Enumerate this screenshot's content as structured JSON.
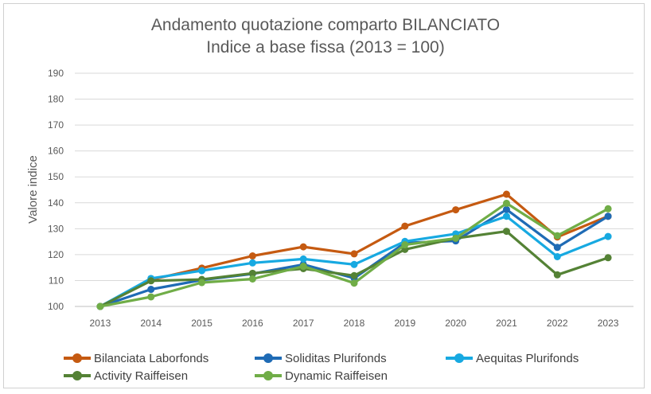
{
  "chart_data": {
    "type": "line",
    "title": "Andamento quotazione comparto BILANCIATO",
    "subtitle": "Indice a base fissa (2013 = 100)",
    "xlabel": "",
    "ylabel": "Valore indice",
    "ylim": [
      100,
      190
    ],
    "yticks": [
      100,
      110,
      120,
      130,
      140,
      150,
      160,
      170,
      180,
      190
    ],
    "grid": true,
    "legend_position": "bottom",
    "x": [
      "2013",
      "2014",
      "2015",
      "2016",
      "2017",
      "2018",
      "2019",
      "2020",
      "2021",
      "2022",
      "2023"
    ],
    "series": [
      {
        "name": "Bilanciata Laborfonds",
        "color": "#C55A11",
        "values": [
          100,
          110.3,
          114.8,
          119.5,
          123,
          120.3,
          131,
          137.3,
          143.3,
          126.8,
          134.8
        ]
      },
      {
        "name": "Soliditas Plurifonds",
        "color": "#1F6BB5",
        "values": [
          100,
          106.6,
          110.2,
          112.6,
          116.2,
          110.9,
          124.5,
          125.3,
          137.4,
          122.8,
          134.8
        ]
      },
      {
        "name": "Aequitas Plurifonds",
        "color": "#17A9E1",
        "values": [
          100,
          110.8,
          113.8,
          116.8,
          118.3,
          116.2,
          125.1,
          128,
          134.8,
          119.2,
          127
        ]
      },
      {
        "name": "Activity Raiffeisen",
        "color": "#548235",
        "values": [
          100,
          109.9,
          110.4,
          112.8,
          114.6,
          111.9,
          122,
          126.3,
          129,
          112.2,
          118.8
        ]
      },
      {
        "name": "Dynamic Raiffeisen",
        "color": "#70AD47",
        "values": [
          100,
          103.7,
          109.2,
          110.6,
          115.5,
          109,
          123.8,
          126.3,
          139.8,
          127.3,
          137.7
        ]
      }
    ]
  }
}
